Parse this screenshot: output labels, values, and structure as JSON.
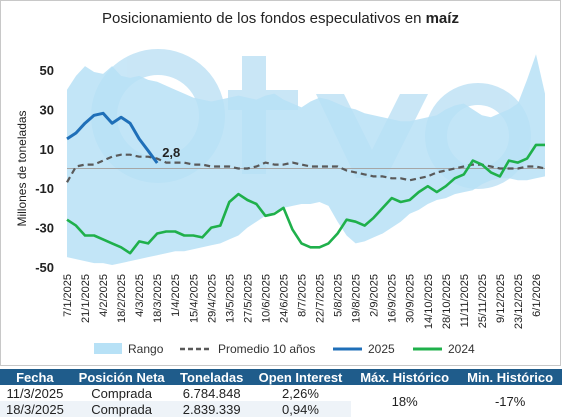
{
  "chart_data": {
    "type": "line",
    "title_main": "Posicionamiento de los fondos especulativos en ",
    "title_bold": "maíz",
    "ylabel": "Millones de toneladas",
    "ylim": [
      -50,
      50
    ],
    "yticks": [
      50,
      30,
      10,
      -10,
      -30,
      -50
    ],
    "x_tick_labels": [
      "7/1/2025",
      "21/1/2025",
      "4/2/2025",
      "18/2/2025",
      "4/3/2025",
      "18/3/2025",
      "1/4/2025",
      "15/4/2025",
      "29/4/2025",
      "13/5/2025",
      "27/5/2025",
      "10/6/2025",
      "24/6/2025",
      "8/7/2025",
      "22/7/2025",
      "5/8/2025",
      "19/8/2025",
      "2/9/2025",
      "16/9/2025",
      "30/9/2025",
      "14/10/2025",
      "28/10/2025",
      "11/11/2025",
      "25/11/2025",
      "9/12/2025",
      "23/12/2025",
      "6/1/2026"
    ],
    "annotation": "2,8",
    "legend": [
      "Rango",
      "Promedio 10 años",
      "2025",
      "2024"
    ],
    "colors": {
      "rango": "#b7e1f6",
      "promedio": "#595959",
      "y2025": "#1f6fb8",
      "y2024": "#1fb04b",
      "zero_line": "#a6a6a6",
      "watermark": "#9dd3f0"
    },
    "series": [
      {
        "name": "Rango",
        "x": [
          0,
          1,
          2,
          3,
          4,
          5,
          6,
          7,
          8,
          9,
          10,
          11,
          12,
          13,
          14,
          15,
          16,
          17,
          18,
          19,
          20,
          21,
          22,
          23,
          24,
          25,
          26,
          27,
          28,
          29,
          30,
          31,
          32,
          33,
          34,
          35,
          36,
          37,
          38,
          39,
          40,
          41,
          42,
          43,
          44,
          45,
          46,
          47,
          48,
          49,
          50,
          51,
          52,
          53
        ],
        "upper": [
          40,
          47,
          52,
          49,
          48,
          52,
          47,
          46,
          47,
          45,
          44,
          42,
          40,
          38,
          36,
          35,
          34,
          35,
          36,
          37,
          36,
          35,
          37,
          38,
          35,
          33,
          31,
          34,
          36,
          35,
          33,
          31,
          30,
          28,
          27,
          26,
          25,
          24,
          24,
          25,
          26,
          27,
          30,
          32,
          33,
          30,
          27,
          26,
          28,
          30,
          33,
          45,
          58,
          38
        ],
        "lower": [
          -45,
          -46,
          -47,
          -48,
          -48,
          -49,
          -48,
          -47,
          -46,
          -45,
          -44,
          -43,
          -42,
          -42,
          -41,
          -40,
          -39,
          -38,
          -36,
          -34,
          -30,
          -27,
          -24,
          -22,
          -20,
          -19,
          -18,
          -18,
          -17,
          -19,
          -27,
          -34,
          -38,
          -37,
          -35,
          -33,
          -30,
          -27,
          -23,
          -21,
          -18,
          -16,
          -15,
          -13,
          -12,
          -11,
          -8,
          -6,
          -5,
          -5,
          -6,
          -6,
          -5,
          -4
        ]
      },
      {
        "name": "Promedio 10 años",
        "x": [
          0,
          1,
          2,
          3,
          4,
          5,
          6,
          7,
          8,
          9,
          10,
          11,
          12,
          13,
          14,
          15,
          16,
          17,
          18,
          19,
          20,
          21,
          22,
          23,
          24,
          25,
          26,
          27,
          28,
          29,
          30,
          31,
          32,
          33,
          34,
          35,
          36,
          37,
          38,
          39,
          40,
          41,
          42,
          43,
          44,
          45,
          46,
          47,
          48,
          49,
          50,
          51,
          52,
          53
        ],
        "values": [
          -7,
          1,
          2,
          2,
          4,
          6,
          7,
          7,
          6,
          6,
          5,
          3,
          3,
          3,
          2,
          2,
          1,
          1,
          1,
          0,
          0,
          1,
          3,
          2,
          2,
          3,
          2,
          1,
          1,
          1,
          1,
          -1,
          -2,
          -3,
          -4,
          -4,
          -5,
          -5,
          -6,
          -5,
          -4,
          -2,
          -1,
          0,
          1,
          2,
          2,
          1,
          0,
          0,
          0,
          1,
          1,
          0
        ]
      },
      {
        "name": "2025",
        "x": [
          0,
          1,
          2,
          3,
          4,
          5,
          6,
          7,
          8,
          9,
          10
        ],
        "values": [
          15,
          18,
          23,
          27,
          28,
          23,
          26,
          23,
          15,
          9,
          2.8
        ]
      },
      {
        "name": "2024",
        "x": [
          0,
          1,
          2,
          3,
          4,
          5,
          6,
          7,
          8,
          9,
          10,
          11,
          12,
          13,
          14,
          15,
          16,
          17,
          18,
          19,
          20,
          21,
          22,
          23,
          24,
          25,
          26,
          27,
          28,
          29,
          30,
          31,
          32,
          33,
          34,
          35,
          36,
          37,
          38,
          39,
          40,
          41,
          42,
          43,
          44,
          45,
          46,
          47,
          48,
          49,
          50,
          51,
          52,
          53
        ],
        "values": [
          -26,
          -29,
          -34,
          -34,
          -36,
          -38,
          -40,
          -43,
          -37,
          -38,
          -33,
          -32,
          -32,
          -34,
          -34,
          -35,
          -30,
          -29,
          -17,
          -13,
          -16,
          -18,
          -24,
          -23,
          -20,
          -31,
          -38,
          -40,
          -40,
          -38,
          -33,
          -26,
          -27,
          -29,
          -25,
          -20,
          -15,
          -17,
          -16,
          -12,
          -9,
          -12,
          -9,
          -5,
          -3,
          4,
          2,
          -2,
          -4,
          4,
          3,
          5,
          12,
          12
        ]
      }
    ]
  },
  "table": {
    "headers": [
      "Fecha",
      "Posición Neta",
      "Toneladas",
      "Open Interest",
      "Máx. Histórico",
      "Min. Histórico"
    ],
    "rows": [
      [
        "11/3/2025",
        "Comprada",
        "6.784.848",
        "2,26%"
      ],
      [
        "18/3/2025",
        "Comprada",
        "2.839.339",
        "0,94%"
      ]
    ],
    "max_historico": "18%",
    "min_historico": "-17%"
  }
}
